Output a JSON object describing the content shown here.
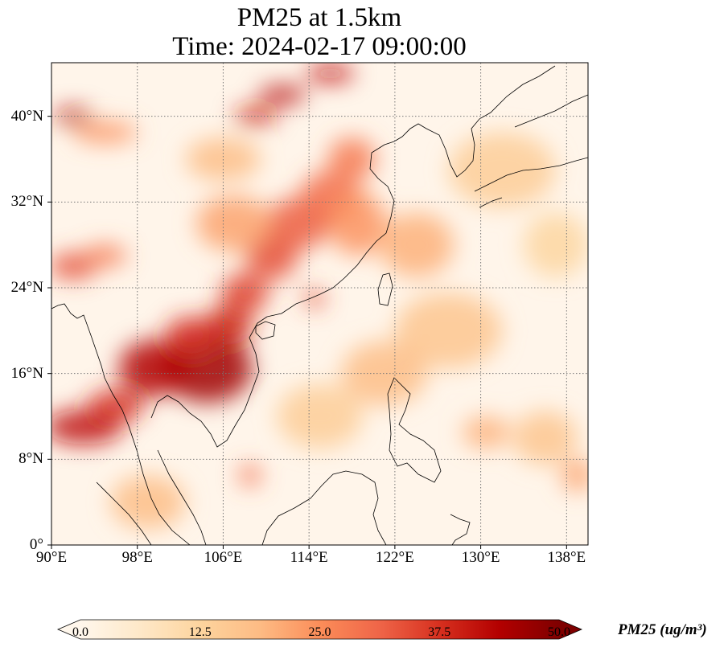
{
  "title": {
    "line1": "PM25 at 1.5km",
    "line2": "Time: 2024-02-17 09:00:00"
  },
  "map": {
    "extent": {
      "lon_min": 90,
      "lon_max": 140,
      "lat_min": 0,
      "lat_max": 45
    },
    "grid": "dotted gray",
    "x_ticks": [
      {
        "lon": 90,
        "label": "90°E"
      },
      {
        "lon": 98,
        "label": "98°E"
      },
      {
        "lon": 106,
        "label": "106°E"
      },
      {
        "lon": 114,
        "label": "114°E"
      },
      {
        "lon": 122,
        "label": "122°E"
      },
      {
        "lon": 130,
        "label": "130°E"
      },
      {
        "lon": 138,
        "label": "138°E"
      }
    ],
    "y_ticks": [
      {
        "lat": 0,
        "label": "0°"
      },
      {
        "lat": 8,
        "label": "8°N"
      },
      {
        "lat": 16,
        "label": "16°N"
      },
      {
        "lat": 24,
        "label": "24°N"
      },
      {
        "lat": 32,
        "label": "32°N"
      },
      {
        "lat": 40,
        "label": "40°N"
      }
    ],
    "plumes": [
      {
        "lon": 104.5,
        "lat": 16.5,
        "value": 46,
        "r_lon": 4.2,
        "r_lat": 3.2
      },
      {
        "lon": 99.5,
        "lat": 16.5,
        "value": 44,
        "r_lon": 3.2,
        "r_lat": 2.6
      },
      {
        "lon": 93,
        "lat": 11,
        "value": 42,
        "r_lon": 3.6,
        "r_lat": 1.6
      },
      {
        "lon": 96,
        "lat": 13,
        "value": 38,
        "r_lon": 2.6,
        "r_lat": 1.5
      },
      {
        "lon": 106.5,
        "lat": 20.5,
        "value": 40,
        "r_lon": 2.2,
        "r_lat": 1.8
      },
      {
        "lon": 103,
        "lat": 19.5,
        "value": 38,
        "r_lon": 2.4,
        "r_lat": 1.8
      },
      {
        "lon": 108,
        "lat": 23.5,
        "value": 36,
        "r_lon": 2.2,
        "r_lat": 1.8
      },
      {
        "lon": 110.5,
        "lat": 27,
        "value": 34,
        "r_lon": 2.4,
        "r_lat": 2.2
      },
      {
        "lon": 113,
        "lat": 30,
        "value": 32,
        "r_lon": 3.0,
        "r_lat": 2.4
      },
      {
        "lon": 116,
        "lat": 32.5,
        "value": 30,
        "r_lon": 2.8,
        "r_lat": 2.4
      },
      {
        "lon": 118,
        "lat": 36,
        "value": 28,
        "r_lon": 2.2,
        "r_lat": 2.0
      },
      {
        "lon": 118.5,
        "lat": 30,
        "value": 24,
        "r_lon": 2.6,
        "r_lat": 3.0
      },
      {
        "lon": 107,
        "lat": 30,
        "value": 22,
        "r_lon": 3.5,
        "r_lat": 2.6
      },
      {
        "lon": 114.5,
        "lat": 23,
        "value": 34,
        "r_lon": 1.0,
        "r_lat": 0.8
      },
      {
        "lon": 92,
        "lat": 26,
        "value": 34,
        "r_lon": 2.2,
        "r_lat": 1.2
      },
      {
        "lon": 95,
        "lat": 27,
        "value": 28,
        "r_lon": 2.0,
        "r_lat": 1.0
      },
      {
        "lon": 92,
        "lat": 40,
        "value": 44,
        "r_lon": 1.8,
        "r_lat": 0.7
      },
      {
        "lon": 95,
        "lat": 38.5,
        "value": 24,
        "r_lon": 3.0,
        "r_lat": 1.0
      },
      {
        "lon": 109,
        "lat": 40,
        "value": 40,
        "r_lon": 2.0,
        "r_lat": 0.8
      },
      {
        "lon": 111.5,
        "lat": 42,
        "value": 44,
        "r_lon": 2.2,
        "r_lat": 0.8
      },
      {
        "lon": 116,
        "lat": 44,
        "value": 42,
        "r_lon": 2.2,
        "r_lat": 0.8
      },
      {
        "lon": 106,
        "lat": 36,
        "value": 18,
        "r_lon": 3.5,
        "r_lat": 2.0
      },
      {
        "lon": 99,
        "lat": 4,
        "value": 18,
        "r_lon": 3.5,
        "r_lat": 2.5
      },
      {
        "lon": 108.5,
        "lat": 6.5,
        "value": 30,
        "r_lon": 1.0,
        "r_lat": 1.0
      },
      {
        "lon": 124,
        "lat": 28,
        "value": 20,
        "r_lon": 3.5,
        "r_lat": 3.0
      },
      {
        "lon": 127,
        "lat": 20,
        "value": 16,
        "r_lon": 5.0,
        "r_lat": 3.5
      },
      {
        "lon": 121,
        "lat": 16,
        "value": 18,
        "r_lon": 4.0,
        "r_lat": 3.0
      },
      {
        "lon": 130.5,
        "lat": 10.5,
        "value": 20,
        "r_lon": 2.2,
        "r_lat": 1.5
      },
      {
        "lon": 136,
        "lat": 10,
        "value": 16,
        "r_lon": 3.0,
        "r_lat": 2.5
      },
      {
        "lon": 139,
        "lat": 6.5,
        "value": 22,
        "r_lon": 1.5,
        "r_lat": 1.5
      },
      {
        "lon": 132,
        "lat": 35,
        "value": 14,
        "r_lon": 5.0,
        "r_lat": 3.5
      },
      {
        "lon": 137,
        "lat": 28,
        "value": 12,
        "r_lon": 3.0,
        "r_lat": 3.0
      },
      {
        "lon": 115,
        "lat": 12,
        "value": 14,
        "r_lon": 4.0,
        "r_lat": 3.0
      }
    ]
  },
  "colorbar": {
    "label": "PM25 (ug/m³)",
    "min": 0,
    "max": 50,
    "ticks": [
      "0.0",
      "12.5",
      "25.0",
      "37.5",
      "50.0"
    ],
    "colormap": [
      "#fff7ec",
      "#fee8c8",
      "#fdd49e",
      "#fdbb84",
      "#fc8d59",
      "#ef6548",
      "#d7301f",
      "#b30000",
      "#7f0000"
    ]
  }
}
